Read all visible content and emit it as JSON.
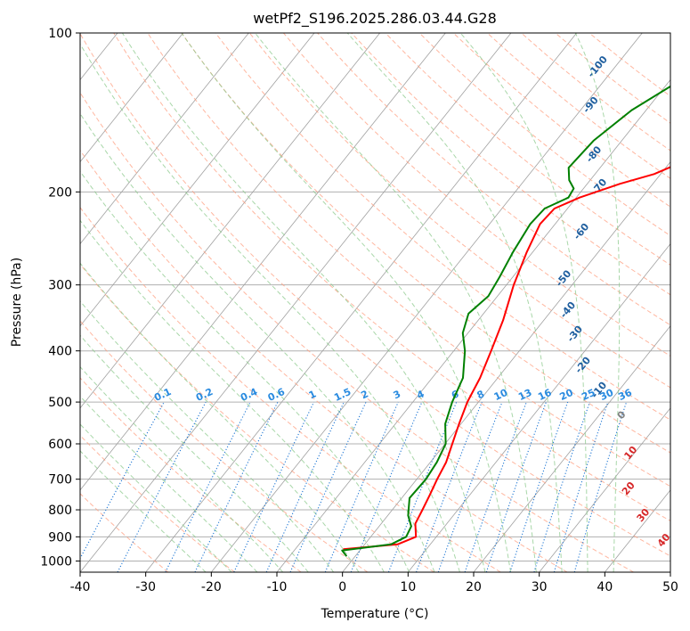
{
  "chart_data": {
    "type": "skew-t",
    "title": "wetPf2_S196.2025.286.03.44.G28",
    "xlabel": "Temperature (°C)",
    "ylabel": "Pressure (hPa)",
    "xlim": [
      -40,
      50
    ],
    "ylim": [
      1050,
      100
    ],
    "x_ticks": [
      -40,
      -30,
      -20,
      -10,
      0,
      10,
      20,
      30,
      40,
      50
    ],
    "y_ticks": [
      100,
      200,
      300,
      400,
      500,
      600,
      700,
      800,
      900,
      1000
    ],
    "dry_adiabat_labels": [
      {
        "text": "-100",
        "t": -22.6,
        "p": 116
      },
      {
        "text": "-90",
        "t": -19.0,
        "p": 137
      },
      {
        "text": "-80",
        "t": -12.5,
        "p": 170
      },
      {
        "text": "-70",
        "t": -7.7,
        "p": 196
      },
      {
        "text": "-60",
        "t": -5.0,
        "p": 238
      },
      {
        "text": "-50",
        "t": -2.0,
        "p": 292
      },
      {
        "text": "-40",
        "t": 2.5,
        "p": 335
      },
      {
        "text": "-30",
        "t": 6.5,
        "p": 372
      },
      {
        "text": "-20",
        "t": 11.5,
        "p": 426
      },
      {
        "text": "-10",
        "t": 17.0,
        "p": 475
      },
      {
        "text": "0",
        "t": 23.5,
        "p": 530
      },
      {
        "text": "10",
        "t": 29.5,
        "p": 625
      },
      {
        "text": "20",
        "t": 33.5,
        "p": 730
      },
      {
        "text": "30",
        "t": 39.0,
        "p": 820
      },
      {
        "text": "40",
        "t": 45.2,
        "p": 915
      }
    ],
    "mixing_ratio_labels": [
      "0.1",
      "0.2",
      "0.4",
      "0.6",
      "1",
      "1.5",
      "2",
      "3",
      "4",
      "6",
      "8",
      "10",
      "13",
      "16",
      "20",
      "25",
      "30",
      "36"
    ],
    "mixing_ratio_values": [
      0.1,
      0.2,
      0.4,
      0.6,
      1,
      1.5,
      2,
      3,
      4,
      6,
      8,
      10,
      13,
      16,
      20,
      25,
      30,
      36
    ],
    "mixing_ratio_top_p": 500,
    "series": [
      {
        "name": "temperature",
        "color": "#ff0000",
        "points": [
          {
            "p": 950,
            "t": -2.7
          },
          {
            "p": 930,
            "t": 5.0
          },
          {
            "p": 900,
            "t": 6.9
          },
          {
            "p": 850,
            "t": 5.2
          },
          {
            "p": 800,
            "t": 4.6
          },
          {
            "p": 750,
            "t": 3.9
          },
          {
            "p": 700,
            "t": 3.1
          },
          {
            "p": 650,
            "t": 2.4
          },
          {
            "p": 600,
            "t": 1.1
          },
          {
            "p": 550,
            "t": -0.3
          },
          {
            "p": 500,
            "t": -1.7
          },
          {
            "p": 450,
            "t": -2.7
          },
          {
            "p": 400,
            "t": -4.3
          },
          {
            "p": 350,
            "t": -6.2
          },
          {
            "p": 300,
            "t": -8.9
          },
          {
            "p": 260,
            "t": -10.9
          },
          {
            "p": 230,
            "t": -12.3
          },
          {
            "p": 215,
            "t": -12.0
          },
          {
            "p": 205,
            "t": -9.5
          },
          {
            "p": 193,
            "t": -5.0
          },
          {
            "p": 185,
            "t": -1.0
          },
          {
            "p": 175,
            "t": 2.0
          },
          {
            "p": 165,
            "t": 4.3
          },
          {
            "p": 150,
            "t": 6.5
          },
          {
            "p": 135,
            "t": 9.9
          },
          {
            "p": 125,
            "t": 11.3
          },
          {
            "p": 115,
            "t": 13.0
          },
          {
            "p": 100,
            "t": 17.5
          }
        ]
      },
      {
        "name": "dewpoint",
        "color": "#008000",
        "points": [
          {
            "p": 980,
            "t": -1.3
          },
          {
            "p": 955,
            "t": -2.7
          },
          {
            "p": 945,
            "t": 0.0
          },
          {
            "p": 930,
            "t": 4.0
          },
          {
            "p": 900,
            "t": 5.4
          },
          {
            "p": 860,
            "t": 4.9
          },
          {
            "p": 820,
            "t": 3.1
          },
          {
            "p": 760,
            "t": 1.2
          },
          {
            "p": 700,
            "t": 1.4
          },
          {
            "p": 650,
            "t": 1.0
          },
          {
            "p": 600,
            "t": 0.1
          },
          {
            "p": 550,
            "t": -2.4
          },
          {
            "p": 500,
            "t": -4.0
          },
          {
            "p": 450,
            "t": -5.3
          },
          {
            "p": 400,
            "t": -8.3
          },
          {
            "p": 370,
            "t": -10.8
          },
          {
            "p": 340,
            "t": -12.3
          },
          {
            "p": 315,
            "t": -11.4
          },
          {
            "p": 290,
            "t": -12.0
          },
          {
            "p": 260,
            "t": -13.0
          },
          {
            "p": 230,
            "t": -13.8
          },
          {
            "p": 215,
            "t": -13.5
          },
          {
            "p": 205,
            "t": -11.2
          },
          {
            "p": 197,
            "t": -11.5
          },
          {
            "p": 190,
            "t": -13.2
          },
          {
            "p": 180,
            "t": -14.8
          },
          {
            "p": 160,
            "t": -14.3
          },
          {
            "p": 140,
            "t": -12.2
          },
          {
            "p": 125,
            "t": -8.9
          },
          {
            "p": 110,
            "t": -4.6
          },
          {
            "p": 100,
            "t": -2.0
          }
        ]
      }
    ]
  },
  "colors": {
    "temperature": "#ff0000",
    "dewpoint": "#008000",
    "dry_adiabat": "#ff9f80",
    "moist_adiabat": "#8cc98c",
    "mixing_ratio": "#1f77d4",
    "isotherm": "#a0a0a0",
    "isobar": "#b0b0b0",
    "dry_label_cold": "#1f5f9f",
    "dry_label_zero": "#808080",
    "dry_label_warm": "#d62728",
    "mixing_label": "#2a8be0"
  }
}
